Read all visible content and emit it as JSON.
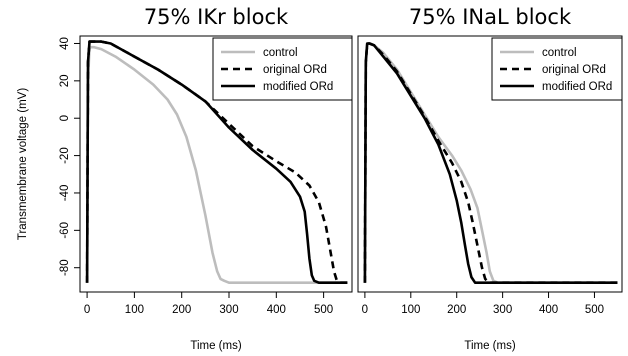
{
  "chart_data": [
    {
      "type": "line",
      "title": "75% IKr block",
      "xlabel": "Time (ms)",
      "ylabel": "Transmembrane voltage (mV)",
      "xlim": [
        -15,
        560
      ],
      "ylim": [
        -93,
        44
      ],
      "x_ticks": [
        0,
        100,
        200,
        300,
        400,
        500
      ],
      "y_ticks": [
        40,
        20,
        0,
        -20,
        -40,
        -60,
        -80
      ],
      "legend_position": "top-right",
      "series": [
        {
          "name": "control",
          "color": "#bdbdbd",
          "dash": "",
          "x": [
            0,
            2,
            5,
            15,
            30,
            60,
            100,
            140,
            170,
            190,
            210,
            230,
            250,
            265,
            275,
            282,
            290,
            300,
            350,
            400,
            450,
            500,
            550
          ],
          "y": [
            -88,
            20,
            38,
            38,
            37,
            33,
            26,
            18,
            10,
            2,
            -10,
            -28,
            -52,
            -72,
            -82,
            -86,
            -87,
            -88,
            -88,
            -88,
            -88,
            -88,
            -88
          ]
        },
        {
          "name": "original ORd",
          "color": "#000000",
          "dash": "7,5",
          "x": [
            0,
            2,
            5,
            10,
            20,
            30,
            50,
            100,
            150,
            200,
            250,
            300,
            350,
            400,
            440,
            470,
            490,
            505,
            515,
            522,
            528,
            535,
            550
          ],
          "y": [
            -88,
            30,
            41,
            41,
            41,
            41,
            40,
            33,
            26,
            18,
            9,
            -3,
            -15,
            -23,
            -29,
            -36,
            -45,
            -58,
            -72,
            -82,
            -87,
            -88,
            -88
          ]
        },
        {
          "name": "modified ORd",
          "color": "#000000",
          "dash": "",
          "x": [
            0,
            2,
            5,
            10,
            20,
            30,
            50,
            100,
            150,
            200,
            250,
            300,
            350,
            400,
            430,
            450,
            460,
            465,
            470,
            475,
            480,
            490,
            500,
            550
          ],
          "y": [
            -88,
            30,
            41,
            41,
            41,
            41,
            40,
            33,
            26,
            18,
            9,
            -5,
            -17,
            -27,
            -34,
            -42,
            -50,
            -62,
            -75,
            -84,
            -87,
            -88,
            -88,
            -88
          ]
        }
      ]
    },
    {
      "type": "line",
      "title": "75% INaL block",
      "xlabel": "Time (ms)",
      "ylabel": "",
      "xlim": [
        -15,
        560
      ],
      "ylim": [
        -93,
        44
      ],
      "x_ticks": [
        0,
        100,
        200,
        300,
        400,
        500
      ],
      "y_ticks": [],
      "legend_position": "top-right",
      "series": [
        {
          "name": "control",
          "color": "#bdbdbd",
          "dash": "",
          "x": [
            0,
            2,
            5,
            10,
            20,
            40,
            70,
            100,
            130,
            160,
            190,
            210,
            230,
            245,
            255,
            265,
            272,
            280,
            290,
            300,
            350,
            400,
            450,
            500,
            550
          ],
          "y": [
            -88,
            30,
            40,
            40,
            39,
            35,
            26,
            14,
            2,
            -10,
            -20,
            -28,
            -38,
            -48,
            -60,
            -72,
            -82,
            -87,
            -88,
            -88,
            -88,
            -88,
            -88,
            -88,
            -88
          ]
        },
        {
          "name": "original ORd",
          "color": "#000000",
          "dash": "7,5",
          "x": [
            0,
            2,
            5,
            10,
            20,
            40,
            70,
            100,
            130,
            160,
            190,
            210,
            225,
            235,
            245,
            255,
            262,
            270,
            280,
            350,
            400,
            450,
            500,
            550
          ],
          "y": [
            -88,
            30,
            40,
            40,
            39,
            34,
            25,
            13,
            1,
            -12,
            -24,
            -34,
            -45,
            -56,
            -68,
            -80,
            -86,
            -88,
            -88,
            -88,
            -88,
            -88,
            -88,
            -88
          ]
        },
        {
          "name": "modified ORd",
          "color": "#000000",
          "dash": "",
          "x": [
            0,
            2,
            5,
            10,
            20,
            40,
            70,
            100,
            130,
            160,
            185,
            200,
            210,
            218,
            225,
            232,
            240,
            250,
            260,
            300,
            350,
            400,
            450,
            500,
            550
          ],
          "y": [
            -88,
            30,
            40,
            40,
            39,
            33,
            24,
            12,
            0,
            -14,
            -30,
            -44,
            -56,
            -68,
            -78,
            -85,
            -88,
            -88,
            -88,
            -88,
            -88,
            -88,
            -88,
            -88,
            -88
          ]
        }
      ]
    }
  ]
}
